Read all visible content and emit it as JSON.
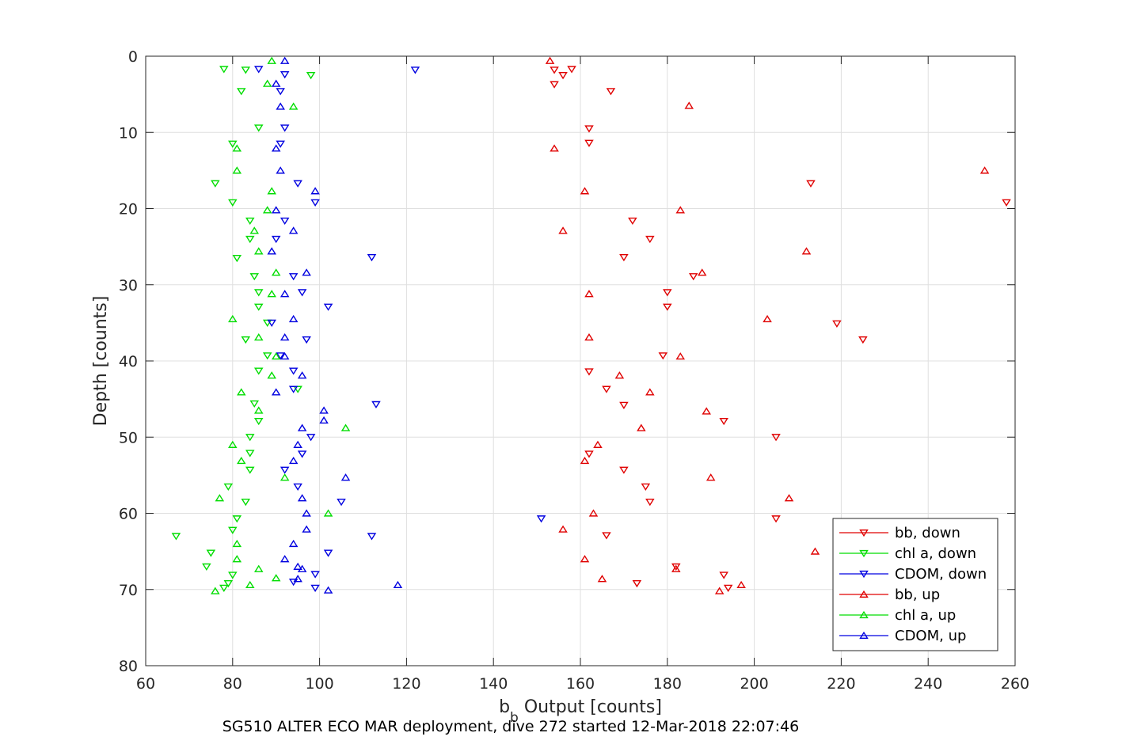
{
  "chart_data": {
    "type": "scatter",
    "xlabel_main": "b",
    "xlabel_sub": "b",
    "xlabel_rest": " Output [counts]",
    "ylabel": "Depth [counts]",
    "caption": "SG510 ALTER ECO MAR deployment, dive 272 started 12-Mar-2018 22:07:46",
    "xlim": [
      60,
      260
    ],
    "ylim": [
      0,
      80
    ],
    "y_reversed": true,
    "grid": true,
    "legend_position": "bottom-right",
    "xticks": [
      "60",
      "80",
      "100",
      "120",
      "140",
      "160",
      "180",
      "200",
      "220",
      "240",
      "260"
    ],
    "yticks": [
      "0",
      "10",
      "20",
      "30",
      "40",
      "50",
      "60",
      "70",
      "80"
    ],
    "series": [
      {
        "name": "bb, down",
        "color": "#e00000",
        "marker": "triangle-down",
        "points": [
          [
            154,
            1.8
          ],
          [
            156,
            2.5
          ],
          [
            158,
            1.7
          ],
          [
            154,
            3.7
          ],
          [
            167,
            4.6
          ],
          [
            162,
            9.5
          ],
          [
            162,
            11.4
          ],
          [
            213,
            16.7
          ],
          [
            258,
            19.2
          ],
          [
            172,
            21.6
          ],
          [
            176,
            24.0
          ],
          [
            170,
            26.4
          ],
          [
            186,
            28.9
          ],
          [
            180,
            31.0
          ],
          [
            180,
            32.9
          ],
          [
            219,
            35.1
          ],
          [
            225,
            37.2
          ],
          [
            179,
            39.3
          ],
          [
            162,
            41.4
          ],
          [
            166,
            43.7
          ],
          [
            170,
            45.8
          ],
          [
            193,
            47.9
          ],
          [
            205,
            50.0
          ],
          [
            162,
            52.2
          ],
          [
            170,
            54.3
          ],
          [
            175,
            56.5
          ],
          [
            176,
            58.5
          ],
          [
            205,
            60.7
          ],
          [
            166,
            62.9
          ],
          [
            182,
            67.0
          ],
          [
            193,
            68.1
          ],
          [
            173,
            69.2
          ],
          [
            194,
            69.8
          ]
        ]
      },
      {
        "name": "chl a, down",
        "color": "#00dd00",
        "marker": "triangle-down",
        "points": [
          [
            78,
            1.7
          ],
          [
            83,
            1.8
          ],
          [
            98,
            2.5
          ],
          [
            82,
            4.6
          ],
          [
            86,
            9.4
          ],
          [
            80,
            11.5
          ],
          [
            76,
            16.7
          ],
          [
            80,
            19.2
          ],
          [
            84,
            21.6
          ],
          [
            84,
            24.0
          ],
          [
            81,
            26.5
          ],
          [
            85,
            28.9
          ],
          [
            86,
            31.0
          ],
          [
            86,
            32.9
          ],
          [
            88,
            35.0
          ],
          [
            83,
            37.2
          ],
          [
            88,
            39.3
          ],
          [
            86,
            41.3
          ],
          [
            95,
            43.7
          ],
          [
            85,
            45.6
          ],
          [
            86,
            47.9
          ],
          [
            84,
            50.0
          ],
          [
            84,
            52.1
          ],
          [
            84,
            54.3
          ],
          [
            79,
            56.5
          ],
          [
            83,
            58.5
          ],
          [
            81,
            60.7
          ],
          [
            67,
            63.0
          ],
          [
            80,
            62.2
          ],
          [
            75,
            65.2
          ],
          [
            74,
            67.0
          ],
          [
            80,
            68.1
          ],
          [
            79,
            69.2
          ],
          [
            78,
            69.8
          ]
        ]
      },
      {
        "name": "CDOM, down",
        "color": "#0000e0",
        "marker": "triangle-down",
        "points": [
          [
            86,
            1.7
          ],
          [
            92,
            2.4
          ],
          [
            122,
            1.8
          ],
          [
            91,
            4.6
          ],
          [
            92,
            9.4
          ],
          [
            91,
            11.5
          ],
          [
            95,
            16.7
          ],
          [
            99,
            19.2
          ],
          [
            92,
            21.6
          ],
          [
            90,
            24.0
          ],
          [
            112,
            26.4
          ],
          [
            94,
            28.9
          ],
          [
            96,
            31.0
          ],
          [
            102,
            32.9
          ],
          [
            89,
            35.0
          ],
          [
            97,
            37.2
          ],
          [
            91,
            39.3
          ],
          [
            94,
            41.3
          ],
          [
            94,
            43.7
          ],
          [
            113,
            45.7
          ],
          [
            98,
            50.0
          ],
          [
            96,
            52.2
          ],
          [
            92,
            54.3
          ],
          [
            95,
            56.5
          ],
          [
            105,
            58.5
          ],
          [
            151,
            60.7
          ],
          [
            112,
            63.0
          ],
          [
            102,
            65.2
          ],
          [
            99,
            68.0
          ],
          [
            94,
            69.0
          ],
          [
            99,
            69.8
          ]
        ]
      },
      {
        "name": "bb, up",
        "color": "#e00000",
        "marker": "triangle-up",
        "points": [
          [
            153,
            0.6
          ],
          [
            185,
            6.5
          ],
          [
            154,
            12.1
          ],
          [
            253,
            15.0
          ],
          [
            161,
            17.7
          ],
          [
            183,
            20.2
          ],
          [
            156,
            22.9
          ],
          [
            212,
            25.6
          ],
          [
            188,
            28.4
          ],
          [
            162,
            31.2
          ],
          [
            203,
            34.5
          ],
          [
            162,
            36.9
          ],
          [
            183,
            39.4
          ],
          [
            169,
            41.9
          ],
          [
            176,
            44.1
          ],
          [
            189,
            46.6
          ],
          [
            174,
            48.8
          ],
          [
            164,
            51.0
          ],
          [
            161,
            53.1
          ],
          [
            190,
            55.3
          ],
          [
            208,
            58.0
          ],
          [
            163,
            60.0
          ],
          [
            156,
            62.1
          ],
          [
            214,
            65.0
          ],
          [
            161,
            66.0
          ],
          [
            182,
            67.3
          ],
          [
            165,
            68.6
          ],
          [
            197,
            69.4
          ],
          [
            192,
            70.2
          ]
        ]
      },
      {
        "name": "chl a, up",
        "color": "#00dd00",
        "marker": "triangle-up",
        "points": [
          [
            89,
            0.6
          ],
          [
            88,
            3.6
          ],
          [
            94,
            6.6
          ],
          [
            81,
            12.1
          ],
          [
            81,
            15.0
          ],
          [
            89,
            17.7
          ],
          [
            88,
            20.2
          ],
          [
            85,
            22.9
          ],
          [
            86,
            25.6
          ],
          [
            90,
            28.4
          ],
          [
            89,
            31.2
          ],
          [
            80,
            34.5
          ],
          [
            86,
            36.9
          ],
          [
            90,
            39.4
          ],
          [
            89,
            41.9
          ],
          [
            82,
            44.1
          ],
          [
            86,
            46.5
          ],
          [
            106,
            48.8
          ],
          [
            80,
            51.0
          ],
          [
            82,
            53.1
          ],
          [
            92,
            55.3
          ],
          [
            77,
            58.0
          ],
          [
            102,
            60.0
          ],
          [
            81,
            64.0
          ],
          [
            81,
            66.0
          ],
          [
            86,
            67.3
          ],
          [
            90,
            68.5
          ],
          [
            84,
            69.4
          ],
          [
            76,
            70.2
          ]
        ]
      },
      {
        "name": "CDOM, up",
        "color": "#0000e0",
        "marker": "triangle-up",
        "points": [
          [
            92,
            0.6
          ],
          [
            90,
            3.6
          ],
          [
            91,
            6.6
          ],
          [
            90,
            12.1
          ],
          [
            91,
            15.0
          ],
          [
            99,
            17.7
          ],
          [
            90,
            20.2
          ],
          [
            94,
            22.9
          ],
          [
            89,
            25.6
          ],
          [
            97,
            28.4
          ],
          [
            92,
            31.2
          ],
          [
            94,
            34.5
          ],
          [
            92,
            36.9
          ],
          [
            92,
            39.4
          ],
          [
            96,
            41.9
          ],
          [
            90,
            44.1
          ],
          [
            101,
            46.5
          ],
          [
            101,
            47.8
          ],
          [
            96,
            48.8
          ],
          [
            95,
            51.0
          ],
          [
            94,
            53.1
          ],
          [
            106,
            55.3
          ],
          [
            96,
            58.0
          ],
          [
            97,
            60.0
          ],
          [
            97,
            62.1
          ],
          [
            94,
            64.0
          ],
          [
            92,
            66.0
          ],
          [
            95,
            67.0
          ],
          [
            96,
            67.3
          ],
          [
            95,
            68.6
          ],
          [
            118,
            69.4
          ],
          [
            102,
            70.1
          ]
        ]
      }
    ]
  }
}
